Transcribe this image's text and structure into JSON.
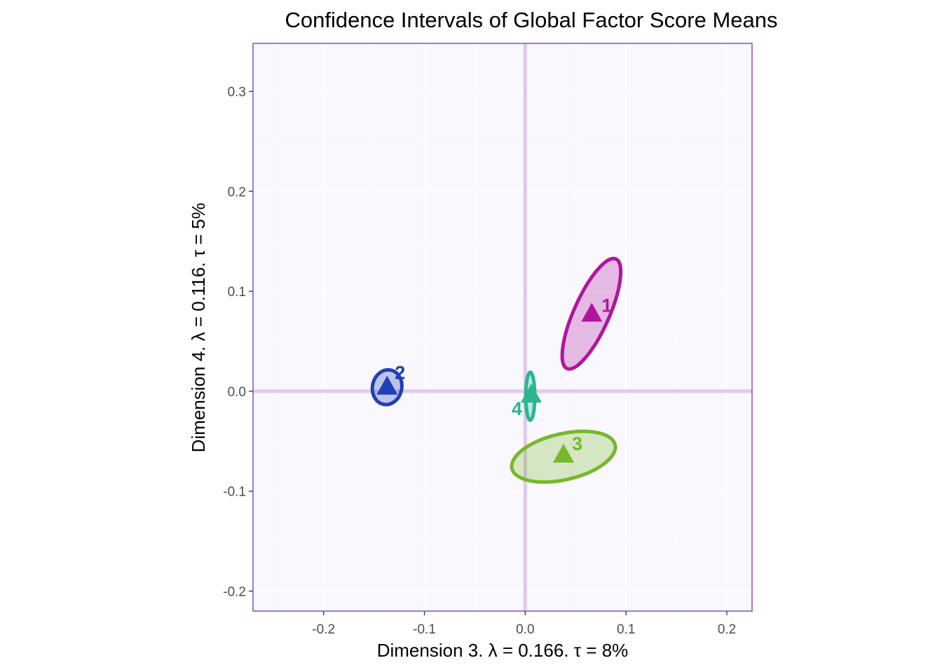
{
  "chart_data": {
    "type": "scatter",
    "title": "Confidence Intervals of Global Factor Score Means",
    "xlabel": "Dimension 3.   λ = 0.166.  τ = 8%",
    "ylabel": "Dimension 4.   λ = 0.116.  τ = 5%",
    "xlim": [
      -0.27,
      0.225
    ],
    "ylim": [
      -0.22,
      0.348
    ],
    "xticks": [
      -0.2,
      -0.1,
      0.0,
      0.1,
      0.2
    ],
    "yticks": [
      -0.2,
      -0.1,
      0.0,
      0.1,
      0.2,
      0.3
    ],
    "xtick_labels": [
      "-0.2",
      "-0.1",
      "0.0",
      "0.1",
      "0.2"
    ],
    "ytick_labels": [
      "-0.2",
      "-0.1",
      "0.0",
      "0.1",
      "0.2",
      "0.3"
    ],
    "grid": true,
    "panel_background": "#f8f8fe",
    "panel_border_color": "#7b2fbf",
    "origin_line_color": "#e0c8ee",
    "points": [
      {
        "label": "1",
        "x": 0.066,
        "y": 0.078,
        "color": "#b0169d",
        "ellipse": {
          "cx": 0.0657,
          "cy": 0.0775,
          "rx": 0.0175,
          "ry": 0.06,
          "angle_deg": 24
        }
      },
      {
        "label": "2",
        "x": -0.137,
        "y": 0.005,
        "color": "#2240b5",
        "ellipse": {
          "cx": -0.137,
          "cy": 0.004,
          "rx": 0.0145,
          "ry": 0.0175,
          "angle_deg": 12
        }
      },
      {
        "label": "3",
        "x": 0.038,
        "y": -0.063,
        "color": "#76b82a",
        "ellipse": {
          "cx": 0.038,
          "cy": -0.0655,
          "rx": 0.0525,
          "ry": 0.023,
          "angle_deg": -13
        }
      },
      {
        "label": "4",
        "x": 0.006,
        "y": -0.003,
        "color": "#2ab593",
        "ellipse": {
          "cx": 0.005,
          "cy": -0.005,
          "rx": 0.0045,
          "ry": 0.024,
          "angle_deg": 0
        }
      }
    ]
  }
}
